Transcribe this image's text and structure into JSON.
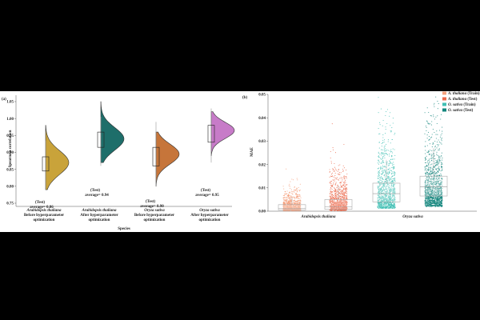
{
  "colors": {
    "background": "#000000",
    "figure_bg": "#ffffff",
    "ath_before": "#C9A33A",
    "ath_after": "#1E6E6A",
    "osa_before": "#C6753A",
    "osa_after": "#C77BC8",
    "ath_train": "#F4A07C",
    "ath_test": "#EC6A4C",
    "osa_train": "#3FBFB4",
    "osa_test": "#13857D"
  },
  "panel_a": {
    "panel_label": "(a)",
    "ylabel": "Spearman correlation",
    "xlabel": "Species",
    "yticks": [
      "0.75",
      "0.80",
      "0.85",
      "0.90",
      "0.95",
      "1.00",
      "1.05"
    ],
    "groups": [
      {
        "species": "Arabidopsis thaliana",
        "line2": "Before hyperparameter",
        "line3": "optimization",
        "test": "(Test)",
        "avg": "average= 0.86"
      },
      {
        "species": "Arabidopsis thaliana",
        "line2": "After hyperparameter",
        "line3": "optimization",
        "test": "(Test)",
        "avg": "average= 0.94"
      },
      {
        "species": "Oryza sativa",
        "line2": "Before hyperparameter",
        "line3": "optimization",
        "test": "(Test)",
        "avg": "average= 0.90"
      },
      {
        "species": "Oryza sativa",
        "line2": "After hyperparameter",
        "line3": "optimization",
        "test": "(Test)",
        "avg": "average= 0.95"
      }
    ]
  },
  "panel_b": {
    "panel_label": "(b)",
    "ylabel": "MAE",
    "yticks": [
      "0.00",
      "0.01",
      "0.02",
      "0.03",
      "0.04",
      "0.05"
    ],
    "xcats": [
      "Arabidopsis thaliana",
      "Oryza sativa"
    ],
    "legend": [
      {
        "species": "A. thaliana",
        "split": "(Train)"
      },
      {
        "species": "A. thaliana",
        "split": "(Test)"
      },
      {
        "species": "O. sativa",
        "split": "(Train)"
      },
      {
        "species": "O. sativa",
        "split": "(Test)"
      }
    ]
  },
  "chart_data": [
    {
      "type": "violin",
      "ylabel": "Spearman correlation",
      "xlabel": "Species",
      "ylim": [
        0.75,
        1.05
      ],
      "categories": [
        "Arabidopsis thaliana Before hyperparameter optimization",
        "Arabidopsis thaliana After hyperparameter optimization",
        "Oryza sativa Before hyperparameter optimization",
        "Oryza sativa After hyperparameter optimization"
      ],
      "series": [
        {
          "average": 0.86,
          "q1": 0.845,
          "median": 0.865,
          "q3": 0.887,
          "whisker_low": 0.79,
          "whisker_high": 0.935,
          "min": 0.79,
          "max": 0.98,
          "mode": 0.87
        },
        {
          "average": 0.94,
          "q1": 0.915,
          "median": 0.935,
          "q3": 0.96,
          "whisker_low": 0.86,
          "whisker_high": 1.005,
          "min": 0.87,
          "max": 1.05,
          "mode": 0.94
        },
        {
          "average": 0.9,
          "q1": 0.86,
          "median": 0.89,
          "q3": 0.915,
          "whisker_low": 0.8,
          "whisker_high": 0.99,
          "min": 0.8,
          "max": 0.96,
          "mode": 0.895
        },
        {
          "average": 0.95,
          "q1": 0.93,
          "median": 0.955,
          "q3": 0.98,
          "whisker_low": 0.87,
          "whisker_high": 1.03,
          "min": 0.89,
          "max": 1.02,
          "mode": 0.965
        }
      ]
    },
    {
      "type": "scatter",
      "ylabel": "MAE",
      "ylim": [
        0.0,
        0.05
      ],
      "categories": [
        "Arabidopsis thaliana",
        "Oryza sativa"
      ],
      "series": [
        {
          "name": "A. thaliana (Train)",
          "category": "Arabidopsis thaliana",
          "q1": 0.0005,
          "median": 0.0012,
          "q3": 0.0028,
          "whisker_high": 0.006
        },
        {
          "name": "A. thaliana (Test)",
          "category": "Arabidopsis thaliana",
          "q1": 0.0008,
          "median": 0.0018,
          "q3": 0.005,
          "whisker_high": 0.011
        },
        {
          "name": "O. sativa (Train)",
          "category": "Oryza sativa",
          "q1": 0.004,
          "median": 0.0075,
          "q3": 0.012,
          "whisker_high": 0.022
        },
        {
          "name": "O. sativa (Test)",
          "category": "Oryza sativa",
          "q1": 0.0065,
          "median": 0.0105,
          "q3": 0.015,
          "whisker_high": 0.027
        }
      ]
    }
  ]
}
